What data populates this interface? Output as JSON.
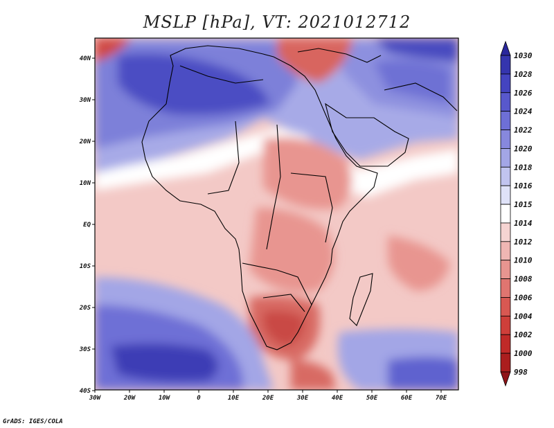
{
  "title": "MSLP [hPa], VT: 2021012712",
  "credit": "GrADS: IGES/COLA",
  "x_axis": {
    "ticks": [
      "30W",
      "20W",
      "10W",
      "0",
      "10E",
      "20E",
      "30E",
      "40E",
      "50E",
      "60E",
      "70E"
    ]
  },
  "y_axis": {
    "ticks": [
      "40N",
      "30N",
      "20N",
      "10N",
      "EQ",
      "10S",
      "20S",
      "30S",
      "40S"
    ]
  },
  "colorbar": {
    "levels": [
      "1030",
      "1028",
      "1026",
      "1024",
      "1022",
      "1020",
      "1018",
      "1016",
      "1015",
      "1014",
      "1012",
      "1010",
      "1008",
      "1006",
      "1004",
      "1002",
      "1000",
      "998"
    ],
    "colors": [
      "#2a279c",
      "#3535ae",
      "#4444c0",
      "#5858cc",
      "#6e6fd6",
      "#8788dd",
      "#a3a6e6",
      "#c1c4ef",
      "#dfe2f8",
      "#ffffff",
      "#f6d4d2",
      "#efb6b3",
      "#e89590",
      "#e07570",
      "#d85852",
      "#ce3f3a",
      "#c02a28",
      "#ab1e1e",
      "#8f1418"
    ]
  }
}
